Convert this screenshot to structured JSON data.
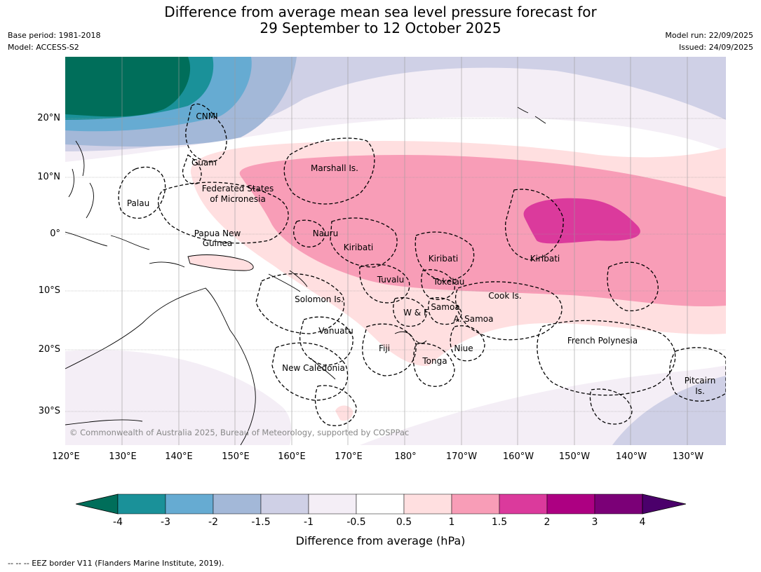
{
  "header": {
    "title_line1": "Difference from average mean sea level pressure forecast for",
    "title_line2": "29 September to 12 October 2025",
    "base_period": "Base period: 1981-2018",
    "model": "Model: ACCESS-S2",
    "model_run": "Model run: 22/09/2025",
    "issued": "Issued: 24/09/2025"
  },
  "map": {
    "lat_labels": [
      "20°N",
      "10°N",
      "0°",
      "10°S",
      "20°S",
      "30°S"
    ],
    "lon_labels": [
      "120°E",
      "130°E",
      "140°E",
      "150°E",
      "160°E",
      "170°E",
      "180°",
      "170°W",
      "160°W",
      "150°W",
      "140°W",
      "130°W"
    ],
    "regions": [
      "CNMI",
      "Guam",
      "Marshall Is.",
      "Palau",
      "Federated States",
      "of Micronesia",
      "Papua New",
      "Guinea",
      "Nauru",
      "Kiribati",
      "Kiribati",
      "Kiribati",
      "Tuvalu",
      "Tokelau",
      "Cook Is.",
      "Solomon Is.",
      "W & F",
      "Samoa",
      "A. Samoa",
      "Vanuatu",
      "Fiji",
      "Niue",
      "Tonga",
      "French Polynesia",
      "New Caledonia",
      "Pitcairn",
      "Is."
    ],
    "copyright": "© Commonwealth of Australia 2025, Bureau of Meteorology, supported by COSPPac"
  },
  "colorbar": {
    "colors": [
      "#006e5a",
      "#1a9199",
      "#66abd2",
      "#a3b8d8",
      "#cfd0e6",
      "#f4eef6",
      "#ffffff",
      "#ffdfe0",
      "#f89db7",
      "#db3a9c",
      "#ad0082",
      "#7b0077",
      "#4b006b"
    ],
    "ticks": [
      "-4",
      "-3",
      "-2",
      "-1.5",
      "-1",
      "-0.5",
      "0.5",
      "1",
      "1.5",
      "2",
      "3",
      "4"
    ],
    "label": "Difference from average (hPa)"
  },
  "footnote": "--  --  -- EEZ border V11 (Flanders Marine Institute, 2019)."
}
